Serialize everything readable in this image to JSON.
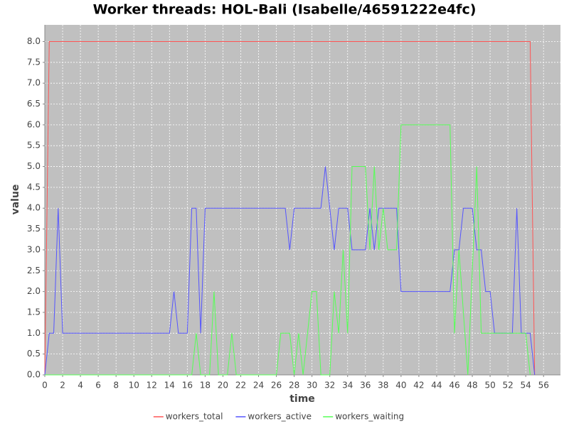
{
  "chart_data": {
    "type": "line",
    "title": "Worker threads: HOL-Bali (Isabelle/46591222e4fc)",
    "x_label": "time",
    "y_label": "value",
    "xlim": [
      0,
      57.9
    ],
    "ylim": [
      0,
      8.4
    ],
    "xticks": [
      0,
      2,
      4,
      6,
      8,
      10,
      12,
      14,
      16,
      18,
      20,
      22,
      24,
      26,
      28,
      30,
      32,
      34,
      36,
      38,
      40,
      42,
      44,
      46,
      48,
      50,
      52,
      54,
      56
    ],
    "yticks": [
      {
        "value": 0,
        "label": "0.0"
      },
      0.5,
      {
        "value": 1,
        "label": "1.0"
      },
      1.5,
      {
        "value": 2,
        "label": "2.0"
      },
      2.5,
      {
        "value": 3,
        "label": "3.0"
      },
      3.5,
      {
        "value": 4,
        "label": "4.0"
      },
      4.5,
      {
        "value": 5,
        "label": "5.0"
      },
      5.5,
      {
        "value": 6,
        "label": "6.0"
      },
      6.5,
      {
        "value": 7,
        "label": "7.0"
      },
      7.5,
      {
        "value": 8,
        "label": "8.0"
      }
    ],
    "grid": true,
    "legend": "bottom",
    "series": [
      {
        "name": "workers_total",
        "color": "#ff5555",
        "x": [
          0,
          0.5,
          54.5,
          55
        ],
        "values": [
          0,
          8,
          8,
          0
        ]
      },
      {
        "name": "workers_active",
        "color": "#5555ff",
        "x": [
          0,
          0.5,
          1,
          1.5,
          2,
          14,
          14.5,
          15,
          16,
          16.5,
          17,
          17.5,
          18,
          27,
          27.5,
          28,
          31,
          31.5,
          32.5,
          33,
          34,
          34.5,
          36,
          36.5,
          37,
          37.5,
          39.5,
          40,
          45.5,
          46,
          46.5,
          47,
          48,
          48.5,
          49,
          49.5,
          50,
          50.5,
          52.5,
          53,
          53.5,
          54.5,
          55
        ],
        "values": [
          0,
          1,
          1,
          4,
          1,
          1,
          2,
          1,
          1,
          4,
          4,
          1,
          4,
          4,
          3,
          4,
          4,
          5,
          3,
          4,
          4,
          3,
          3,
          4,
          3,
          4,
          4,
          2,
          2,
          3,
          3,
          4,
          4,
          3,
          3,
          2,
          2,
          1,
          1,
          4,
          1,
          1,
          0
        ]
      },
      {
        "name": "workers_waiting",
        "color": "#55ff55",
        "x": [
          0,
          16,
          16.5,
          17,
          17.5,
          18.5,
          19,
          19.5,
          20.5,
          21,
          21.5,
          26,
          26.5,
          27.5,
          28,
          28.5,
          29,
          30,
          30.5,
          31,
          32,
          32.5,
          33,
          33.5,
          34,
          34.5,
          36,
          36.5,
          37,
          37.5,
          38,
          38.5,
          39.5,
          40,
          45.5,
          46,
          46.5,
          47.5,
          48.5,
          49,
          54,
          54.5
        ],
        "values": [
          0,
          0,
          0,
          1,
          0,
          0,
          2,
          0,
          0,
          1,
          0,
          0,
          1,
          1,
          0,
          1,
          0,
          2,
          2,
          0,
          0,
          2,
          1,
          3,
          1,
          5,
          5,
          3,
          5,
          3,
          4,
          3,
          3,
          6,
          6,
          1,
          3,
          0,
          5,
          1,
          1,
          0
        ]
      }
    ]
  }
}
